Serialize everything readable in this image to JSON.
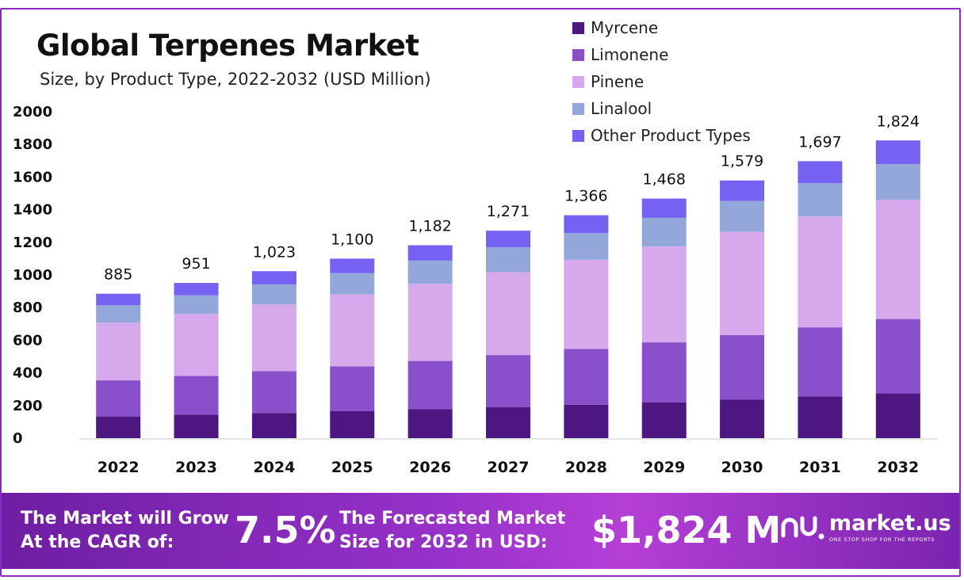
{
  "header": {
    "title": "Global Terpenes Market",
    "subtitle": "Size, by Product Type, 2022-2032 (USD Million)"
  },
  "colors": {
    "myrcene": "#4d1680",
    "limonene": "#8a4fcb",
    "pinene": "#d6a9ec",
    "linalool": "#93a7da",
    "other": "#7561f2",
    "footer": "#8a2bc8"
  },
  "chart_data": {
    "type": "bar",
    "stacked": true,
    "title": "Global Terpenes Market",
    "subtitle": "Size, by Product Type, 2022-2032 (USD Million)",
    "categories": [
      "2022",
      "2023",
      "2024",
      "2025",
      "2026",
      "2027",
      "2028",
      "2029",
      "2030",
      "2031",
      "2032"
    ],
    "series": [
      {
        "name": "Myrcene",
        "values": [
          133,
          143,
          154,
          165,
          177,
          191,
          205,
          220,
          237,
          255,
          274
        ]
      },
      {
        "name": "Limonene",
        "values": [
          221,
          238,
          256,
          275,
          296,
          318,
          342,
          367,
          395,
          424,
          456
        ]
      },
      {
        "name": "Pinene",
        "values": [
          354,
          380,
          409,
          440,
          473,
          508,
          546,
          587,
          632,
          679,
          730
        ]
      },
      {
        "name": "Linalool",
        "values": [
          106,
          114,
          123,
          132,
          142,
          153,
          164,
          176,
          189,
          204,
          219
        ]
      },
      {
        "name": "Other Product Types",
        "values": [
          71,
          76,
          81,
          88,
          94,
          101,
          109,
          118,
          126,
          135,
          145
        ]
      }
    ],
    "totals": [
      885,
      951,
      1023,
      1100,
      1182,
      1271,
      1366,
      1468,
      1579,
      1697,
      1824
    ],
    "total_labels": [
      "885",
      "951",
      "1,023",
      "1,100",
      "1,182",
      "1,271",
      "1,366",
      "1,468",
      "1,579",
      "1,697",
      "1,824"
    ],
    "yticks": [
      0,
      200,
      400,
      600,
      800,
      1000,
      1200,
      1400,
      1600,
      1800,
      2000
    ],
    "ylim": [
      0,
      2000
    ],
    "xlabel": "",
    "ylabel": "",
    "legend_position": "top-right"
  },
  "footer": {
    "cagr_label_line1": "The Market will Grow",
    "cagr_label_line2": "At the CAGR of:",
    "cagr_value": "7.5%",
    "forecast_label_line1": "The Forecasted Market",
    "forecast_label_line2": "Size for 2032 in USD:",
    "forecast_value": "$1,824 M",
    "brand_name": "market.us",
    "brand_tagline": "ONE STOP SHOP FOR THE REPORTS"
  }
}
